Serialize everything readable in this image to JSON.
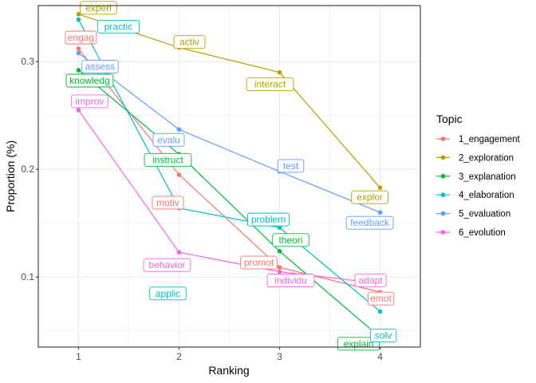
{
  "chart_data": {
    "type": "line",
    "xlabel": "Ranking",
    "ylabel": "Proportion (%)",
    "x": [
      1,
      2,
      3,
      4
    ],
    "xlim": [
      0.6,
      4.4
    ],
    "ylim": [
      0.035,
      0.352
    ],
    "xticks": [
      "1",
      "2",
      "3",
      "4"
    ],
    "yticks": [
      {
        "value": 0.1,
        "label": "0.1"
      },
      {
        "value": 0.2,
        "label": "0.2"
      },
      {
        "value": 0.3,
        "label": "0.3"
      }
    ],
    "grid": true,
    "legend": {
      "title": "Topic",
      "placement": "right"
    },
    "series": [
      {
        "name": "1_engagement",
        "color": "#F8766D",
        "values": [
          0.312,
          0.195,
          0.109,
          0.086
        ],
        "labels": [
          "engag",
          "motiv",
          "promot",
          "emot"
        ]
      },
      {
        "name": "2_exploration",
        "color": "#B79F00",
        "values": [
          0.344,
          0.313,
          0.29,
          0.183
        ],
        "labels": [
          "experi",
          "activ",
          "interact",
          "explor"
        ]
      },
      {
        "name": "3_explanation",
        "color": "#00BA38",
        "values": [
          0.292,
          0.214,
          0.124,
          0.044
        ],
        "labels": [
          "knowledg",
          "instruct",
          "theori",
          "explain"
        ]
      },
      {
        "name": "4_elaboration",
        "color": "#00BFC4",
        "values": [
          0.339,
          0.164,
          0.146,
          0.068
        ],
        "labels": [
          "practic",
          "applic",
          "problem",
          "solv"
        ]
      },
      {
        "name": "5_evaluation",
        "color": "#619CFF",
        "values": [
          0.308,
          0.237,
          0.198,
          0.16
        ],
        "labels": [
          "assess",
          "evalu",
          "test",
          "feedback"
        ]
      },
      {
        "name": "6_evolution",
        "color": "#F564E3",
        "values": [
          0.255,
          0.123,
          0.105,
          0.094
        ],
        "labels": [
          "improv",
          "behavior",
          "individu",
          "adapt"
        ]
      }
    ]
  }
}
